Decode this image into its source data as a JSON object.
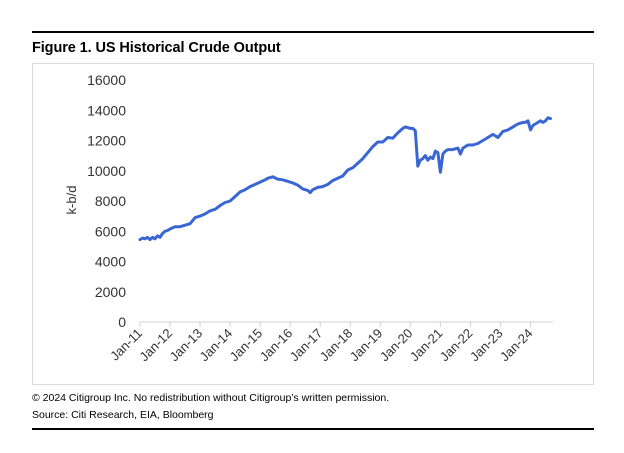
{
  "header": {
    "title": "Figure 1. US Historical Crude Output"
  },
  "footer": {
    "note": "© 2024 Citigroup Inc. No redistribution without Citigroup’s written permission.",
    "source": "Source: Citi Research, EIA, Bloomberg"
  },
  "chart_data": {
    "type": "line",
    "title": "Figure 1. US Historical Crude Output",
    "xlabel": "",
    "ylabel": "k-b/d",
    "ylim": [
      0,
      16000
    ],
    "yticks": [
      0,
      2000,
      4000,
      6000,
      8000,
      10000,
      12000,
      14000,
      16000
    ],
    "xticks": [
      "Jan-11",
      "Jan-12",
      "Jan-13",
      "Jan-14",
      "Jan-15",
      "Jan-16",
      "Jan-17",
      "Jan-18",
      "Jan-19",
      "Jan-20",
      "Jan-21",
      "Jan-22",
      "Jan-23",
      "Jan-24"
    ],
    "grid": false,
    "legend": "none",
    "line_color": "#3a66d4",
    "series": [
      {
        "x": [
          "2011-01",
          "2011-02",
          "2011-03",
          "2011-04",
          "2011-05",
          "2011-06",
          "2011-07",
          "2011-08",
          "2011-09",
          "2011-10",
          "2011-11",
          "2011-12",
          "2012-01",
          "2012-03",
          "2012-05",
          "2012-07",
          "2012-09",
          "2012-11",
          "2013-01",
          "2013-03",
          "2013-05",
          "2013-07",
          "2013-09",
          "2013-11",
          "2014-01",
          "2014-03",
          "2014-05",
          "2014-07",
          "2014-09",
          "2014-11",
          "2015-01",
          "2015-03",
          "2015-04",
          "2015-06",
          "2015-08",
          "2015-10",
          "2015-12",
          "2016-02",
          "2016-04",
          "2016-06",
          "2016-08",
          "2016-09",
          "2016-10",
          "2016-12",
          "2017-02",
          "2017-04",
          "2017-06",
          "2017-08",
          "2017-10",
          "2017-12",
          "2018-02",
          "2018-04",
          "2018-06",
          "2018-08",
          "2018-10",
          "2018-12",
          "2019-02",
          "2019-04",
          "2019-06",
          "2019-08",
          "2019-10",
          "2019-11",
          "2019-12",
          "2020-01",
          "2020-02",
          "2020-03",
          "2020-04",
          "2020-05",
          "2020-06",
          "2020-07",
          "2020-08",
          "2020-09",
          "2020-10",
          "2020-11",
          "2020-12",
          "2021-01",
          "2021-02",
          "2021-03",
          "2021-04",
          "2021-06",
          "2021-08",
          "2021-09",
          "2021-10",
          "2021-12",
          "2022-02",
          "2022-04",
          "2022-06",
          "2022-08",
          "2022-10",
          "2022-12",
          "2023-02",
          "2023-04",
          "2023-06",
          "2023-08",
          "2023-10",
          "2023-11",
          "2023-12",
          "2024-01",
          "2024-02",
          "2024-03",
          "2024-04",
          "2024-05",
          "2024-06",
          "2024-07",
          "2024-08",
          "2024-09"
        ],
        "values": [
          5450,
          5550,
          5500,
          5600,
          5450,
          5600,
          5500,
          5700,
          5600,
          5850,
          6000,
          6050,
          6150,
          6300,
          6300,
          6400,
          6500,
          6900,
          7000,
          7150,
          7350,
          7450,
          7700,
          7900,
          8000,
          8300,
          8600,
          8750,
          8950,
          9100,
          9250,
          9400,
          9500,
          9600,
          9450,
          9400,
          9300,
          9200,
          9050,
          8800,
          8700,
          8550,
          8750,
          8900,
          8950,
          9100,
          9350,
          9500,
          9650,
          10050,
          10200,
          10500,
          10800,
          11200,
          11600,
          11900,
          11900,
          12200,
          12150,
          12500,
          12800,
          12900,
          12850,
          12800,
          12800,
          12650,
          10300,
          10700,
          10800,
          11000,
          10700,
          10900,
          10800,
          11300,
          11200,
          9900,
          11100,
          11300,
          11400,
          11400,
          11500,
          11100,
          11500,
          11700,
          11700,
          11800,
          12000,
          12200,
          12400,
          12200,
          12600,
          12700,
          12900,
          13100,
          13200,
          13200,
          13300,
          12700,
          13000,
          13100,
          13200,
          13300,
          13200,
          13300,
          13500,
          13450
        ]
      }
    ]
  }
}
